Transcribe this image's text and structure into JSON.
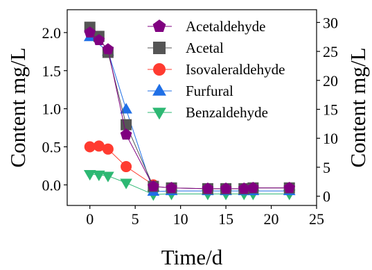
{
  "chart_data": {
    "type": "line",
    "title": "",
    "xlabel": "Time/d",
    "ylabel": "Content mg/L",
    "y2label": "Content mg/L",
    "xlim": [
      -2.5,
      25
    ],
    "ylim": [
      -0.27,
      2.3
    ],
    "y2lim": [
      -1.6,
      32.2
    ],
    "xticks": [
      0,
      5,
      10,
      15,
      20,
      25
    ],
    "yticks": [
      0.0,
      0.5,
      1.0,
      1.5,
      2.0
    ],
    "y2ticks": [
      0,
      5,
      10,
      15,
      20,
      25,
      30
    ],
    "ytick_labels": [
      "0.0",
      "0.5",
      "1.0",
      "1.5",
      "2.0"
    ],
    "legend_position": "top-right",
    "series": [
      {
        "name": "Acetaldehyde",
        "axis": "left",
        "marker": "pentagon",
        "color": "#800080",
        "x": [
          0,
          1,
          2,
          4,
          7,
          9,
          13,
          15,
          17,
          18,
          22
        ],
        "y": [
          2.0,
          1.9,
          1.78,
          0.66,
          -0.02,
          -0.04,
          -0.05,
          -0.05,
          -0.05,
          -0.04,
          -0.04
        ]
      },
      {
        "name": "Acetal",
        "axis": "left",
        "marker": "square",
        "color": "#555555",
        "x": [
          0,
          1,
          2,
          4,
          7,
          9,
          13,
          15,
          17,
          18,
          22
        ],
        "y": [
          2.07,
          1.95,
          1.74,
          0.79,
          -0.02,
          -0.04,
          -0.05,
          -0.05,
          -0.05,
          -0.04,
          -0.04
        ]
      },
      {
        "name": "Isovaleraldehyde",
        "axis": "left",
        "marker": "circle",
        "color": "#ff3b30",
        "x": [
          0,
          1,
          2,
          4,
          7
        ],
        "y": [
          0.5,
          0.51,
          0.47,
          0.24,
          0.0
        ]
      },
      {
        "name": "Furfural",
        "axis": "right",
        "marker": "triangle-up",
        "color": "#1f6fe6",
        "x": [
          0,
          2,
          4,
          7,
          9,
          13,
          15,
          17,
          18,
          22
        ],
        "y": [
          27.5,
          25.0,
          15.0,
          0.8,
          0.9,
          0.9,
          0.9,
          0.9,
          0.9,
          0.9
        ]
      },
      {
        "name": "Benzaldehyde",
        "axis": "right",
        "marker": "triangle-down",
        "color": "#2db873",
        "x": [
          0,
          1,
          2,
          4,
          7,
          9,
          13,
          15,
          17,
          18,
          22
        ],
        "y": [
          3.8,
          3.7,
          3.5,
          2.3,
          0.3,
          0.4,
          0.4,
          0.4,
          0.4,
          0.4,
          0.4
        ]
      }
    ]
  }
}
